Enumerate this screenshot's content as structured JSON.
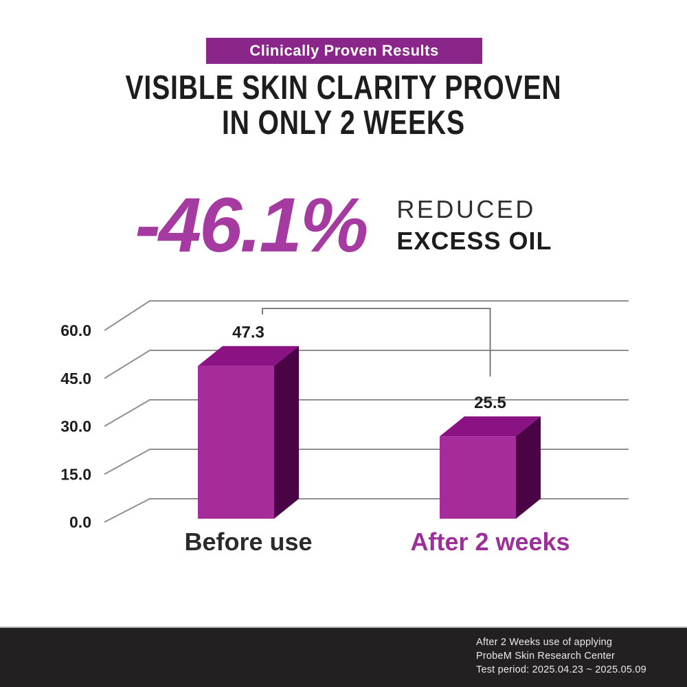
{
  "badge": {
    "label": "Clinically Proven Results",
    "bg_color": "#8a2589",
    "text_color": "#ffffff"
  },
  "heading": {
    "line1": "VISIBLE SKIN CLARITY PROVEN",
    "line2": "IN ONLY 2 WEEKS",
    "color": "#1d1d1e"
  },
  "stat": {
    "value": "-46.1%",
    "desc_line1": "REDUCED",
    "desc_line2": "EXCESS OIL",
    "value_color": "#a53aa0"
  },
  "chart_data": {
    "type": "bar",
    "style": "3d-column",
    "title": "",
    "categories": [
      "Before use",
      "After 2 weeks"
    ],
    "values": [
      47.3,
      25.5
    ],
    "value_labels": [
      "47.3",
      "25.5"
    ],
    "category_colors": [
      "#2b2b2b",
      "#9c2f9a"
    ],
    "yticks": [
      "60.0",
      "45.0",
      "30.0",
      "15.0",
      "0.0"
    ],
    "ylim": [
      0,
      60
    ],
    "tick_step": 15,
    "grid": true,
    "legend": false,
    "annotation": "comparison bracket linking 47.3 bar to 25.5 bar",
    "colors": {
      "bar_front": "#a62c9b",
      "bar_top": "#8a1282",
      "bar_side": "#4a0345",
      "grid": "#8f8f8f",
      "bracket": "#6e6e6e",
      "tick_text": "#1d1d1e"
    }
  },
  "footer": {
    "line1": "After 2 Weeks use of applying",
    "line2": "ProbeM Skin Research Center",
    "line3": "Test period: 2025.04.23 ~ 2025.05.09",
    "bg_color": "#241f21",
    "text_color": "#ebebeb"
  }
}
